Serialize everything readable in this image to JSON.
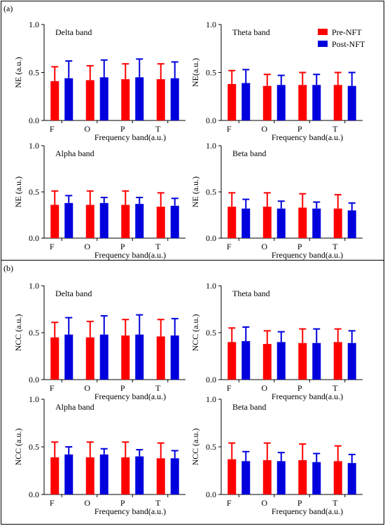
{
  "figure": {
    "panels": [
      {
        "label": "(a)"
      },
      {
        "label": "(b)"
      }
    ],
    "legend": [
      {
        "name": "Pre-NFT",
        "color": "#ff0000"
      },
      {
        "name": "Post-NFT",
        "color": "#0000dd"
      }
    ],
    "colors": {
      "pre": "#ff0000",
      "post": "#0000dd",
      "frame": "#000000"
    }
  },
  "chart_data": [
    {
      "type": "bar",
      "panel": "(a)",
      "title": "Delta band",
      "xlabel": "Frequency band(a.u.)",
      "ylabel": "NE (a.u.)",
      "categories": [
        "F",
        "O",
        "P",
        "T"
      ],
      "ylim": [
        0,
        1
      ],
      "yticks": [
        "0.0",
        "0.5",
        "1.0"
      ],
      "series": [
        {
          "name": "Pre-NFT",
          "values": [
            0.41,
            0.42,
            0.43,
            0.43
          ],
          "errors": [
            0.15,
            0.15,
            0.16,
            0.16
          ]
        },
        {
          "name": "Post-NFT",
          "values": [
            0.44,
            0.45,
            0.45,
            0.44
          ],
          "errors": [
            0.18,
            0.18,
            0.19,
            0.17
          ]
        }
      ]
    },
    {
      "type": "bar",
      "panel": "(a)",
      "title": "Theta band",
      "xlabel": "Frequency band(a.u.)",
      "ylabel": "NE(a.u.)",
      "categories": [
        "F",
        "O",
        "P",
        "T"
      ],
      "ylim": [
        0,
        1
      ],
      "yticks": [
        "0.0",
        "0.5",
        "1.0"
      ],
      "legend": true,
      "series": [
        {
          "name": "Pre-NFT",
          "values": [
            0.38,
            0.36,
            0.37,
            0.37
          ],
          "errors": [
            0.14,
            0.12,
            0.13,
            0.13
          ]
        },
        {
          "name": "Post-NFT",
          "values": [
            0.39,
            0.37,
            0.37,
            0.36
          ],
          "errors": [
            0.14,
            0.1,
            0.11,
            0.14
          ]
        }
      ]
    },
    {
      "type": "bar",
      "panel": "(a)",
      "title": "Alpha band",
      "xlabel": "Frequency band(a.u.)",
      "ylabel": "NE (a.u.)",
      "categories": [
        "F",
        "O",
        "P",
        "T"
      ],
      "ylim": [
        0,
        1
      ],
      "yticks": [
        "0.0",
        "0.5",
        "1.0"
      ],
      "series": [
        {
          "name": "Pre-NFT",
          "values": [
            0.36,
            0.36,
            0.36,
            0.34
          ],
          "errors": [
            0.15,
            0.15,
            0.15,
            0.15
          ]
        },
        {
          "name": "Post-NFT",
          "values": [
            0.38,
            0.38,
            0.37,
            0.35
          ],
          "errors": [
            0.08,
            0.06,
            0.07,
            0.08
          ]
        }
      ]
    },
    {
      "type": "bar",
      "panel": "(a)",
      "title": "Beta band",
      "xlabel": "Frequency band(a.u.)",
      "ylabel": "NE (a.u.)",
      "categories": [
        "F",
        "O",
        "P",
        "T"
      ],
      "ylim": [
        0,
        1
      ],
      "yticks": [
        "0.0",
        "0.5",
        "1.0"
      ],
      "series": [
        {
          "name": "Pre-NFT",
          "values": [
            0.34,
            0.34,
            0.33,
            0.32
          ],
          "errors": [
            0.15,
            0.15,
            0.15,
            0.15
          ]
        },
        {
          "name": "Post-NFT",
          "values": [
            0.32,
            0.32,
            0.32,
            0.3
          ],
          "errors": [
            0.1,
            0.08,
            0.07,
            0.08
          ]
        }
      ]
    },
    {
      "type": "bar",
      "panel": "(b)",
      "title": "Delta band",
      "xlabel": "Frequency band(a.u.)",
      "ylabel": "NCC (a.u.)",
      "categories": [
        "F",
        "O",
        "P",
        "T"
      ],
      "ylim": [
        0,
        1
      ],
      "yticks": [
        "0.0",
        "0.5",
        "1.0"
      ],
      "series": [
        {
          "name": "Pre-NFT",
          "values": [
            0.45,
            0.45,
            0.47,
            0.46
          ],
          "errors": [
            0.16,
            0.17,
            0.17,
            0.18
          ]
        },
        {
          "name": "Post-NFT",
          "values": [
            0.48,
            0.48,
            0.48,
            0.47
          ],
          "errors": [
            0.18,
            0.2,
            0.21,
            0.18
          ]
        }
      ]
    },
    {
      "type": "bar",
      "panel": "(b)",
      "title": "Theta band",
      "xlabel": "Frequency band(a.u.)",
      "ylabel": "NCC (a.u.)",
      "categories": [
        "F",
        "O",
        "P",
        "T"
      ],
      "ylim": [
        0,
        1
      ],
      "yticks": [
        "0.0",
        "0.5",
        "1.0"
      ],
      "series": [
        {
          "name": "Pre-NFT",
          "values": [
            0.4,
            0.38,
            0.39,
            0.4
          ],
          "errors": [
            0.15,
            0.14,
            0.15,
            0.14
          ]
        },
        {
          "name": "Post-NFT",
          "values": [
            0.41,
            0.4,
            0.39,
            0.39
          ],
          "errors": [
            0.15,
            0.11,
            0.15,
            0.13
          ]
        }
      ]
    },
    {
      "type": "bar",
      "panel": "(b)",
      "title": "Alpha band",
      "xlabel": "Frequency band(a.u.)",
      "ylabel": "NCC (a.u.)",
      "categories": [
        "F",
        "O",
        "P",
        "T"
      ],
      "ylim": [
        0,
        1
      ],
      "yticks": [
        "0.0",
        "0.5",
        "1.0"
      ],
      "series": [
        {
          "name": "Pre-NFT",
          "values": [
            0.39,
            0.39,
            0.39,
            0.38
          ],
          "errors": [
            0.16,
            0.16,
            0.16,
            0.16
          ]
        },
        {
          "name": "Post-NFT",
          "values": [
            0.42,
            0.42,
            0.4,
            0.38
          ],
          "errors": [
            0.08,
            0.06,
            0.07,
            0.08
          ]
        }
      ]
    },
    {
      "type": "bar",
      "panel": "(b)",
      "title": "Beta band",
      "xlabel": "Frequency band(a.u.)",
      "ylabel": "NCC (a.u.)",
      "categories": [
        "F",
        "O",
        "P",
        "T"
      ],
      "ylim": [
        0,
        1
      ],
      "yticks": [
        "0.0",
        "0.5",
        "1.0"
      ],
      "series": [
        {
          "name": "Pre-NFT",
          "values": [
            0.37,
            0.36,
            0.36,
            0.35
          ],
          "errors": [
            0.17,
            0.18,
            0.17,
            0.16
          ]
        },
        {
          "name": "Post-NFT",
          "values": [
            0.35,
            0.35,
            0.34,
            0.33
          ],
          "errors": [
            0.1,
            0.09,
            0.09,
            0.09
          ]
        }
      ]
    }
  ]
}
